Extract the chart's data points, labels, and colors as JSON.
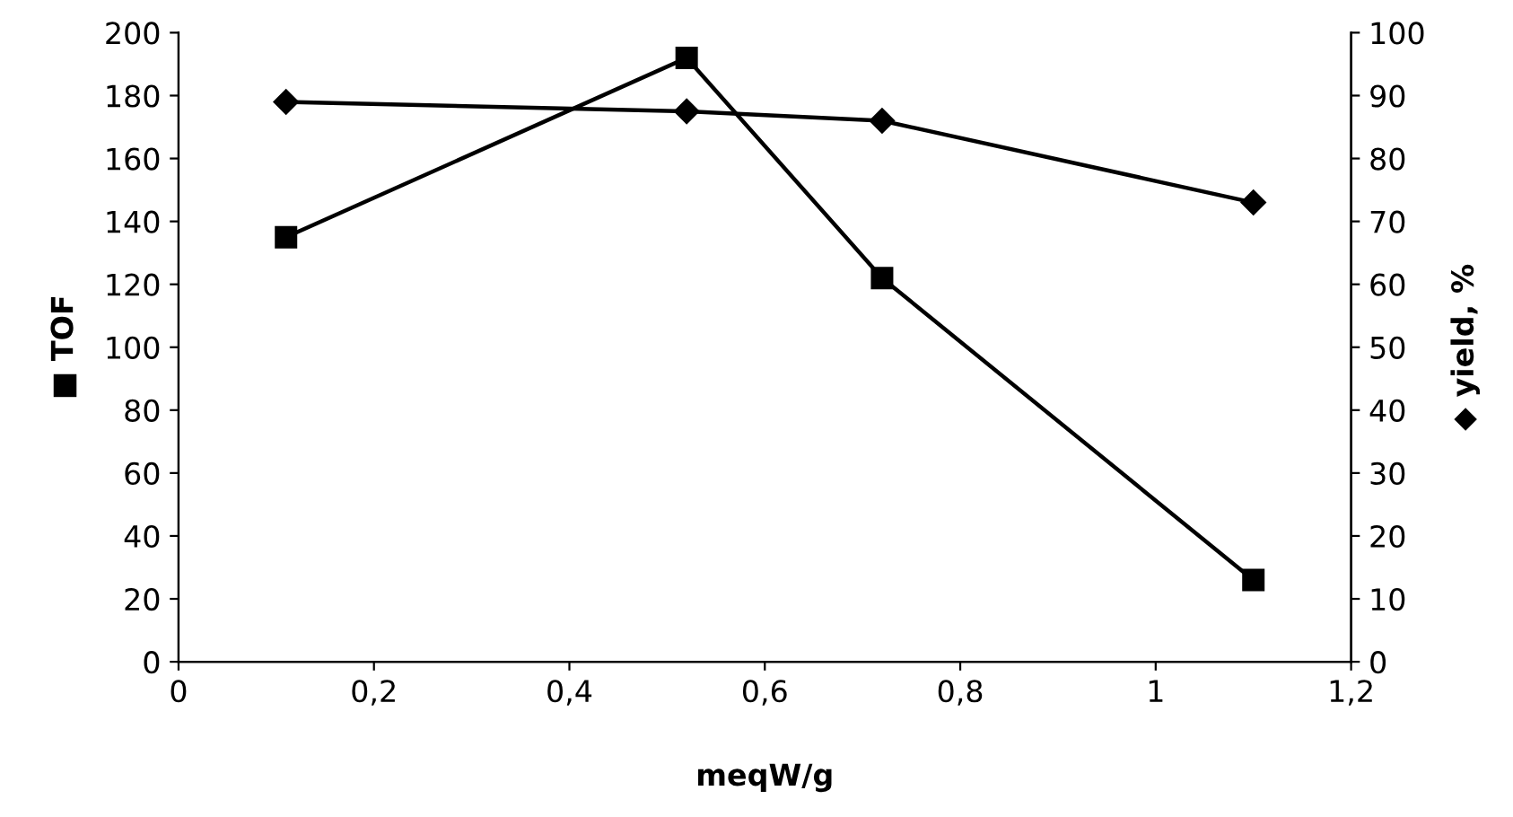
{
  "chart_data": {
    "type": "line",
    "xlabel": "meqW/g",
    "ylabel": "■ TOF",
    "y2label": "◆ yield, %",
    "x": [
      0.11,
      0.52,
      0.72,
      1.1
    ],
    "series": [
      {
        "color": "#000000",
        "values": [
          135,
          192,
          122,
          26
        ],
        "marker": "square"
      },
      {
        "color": "#000000",
        "values": [
          89,
          87.5,
          86,
          73
        ],
        "marker": "diamond",
        "axis": "y2"
      }
    ],
    "xlim": [
      0,
      1.2
    ],
    "xticks": [
      0,
      {
        "value": 0.2,
        "label": "0,2"
      },
      {
        "value": 0.4,
        "label": "0,4"
      },
      {
        "value": 0.6,
        "label": "0,6"
      },
      {
        "value": 0.8,
        "label": "0,8"
      },
      1,
      {
        "value": 1.2,
        "label": "1,2"
      }
    ],
    "ylim": [
      0,
      200
    ],
    "yticks": [
      0,
      20,
      40,
      60,
      80,
      100,
      120,
      140,
      160,
      180,
      200
    ],
    "y2lim": [
      0,
      100
    ],
    "y2ticks": [
      0,
      10,
      20,
      30,
      40,
      50,
      60,
      70,
      80,
      90,
      100
    ],
    "grid": false,
    "legend": false,
    "line_style": "solid"
  }
}
